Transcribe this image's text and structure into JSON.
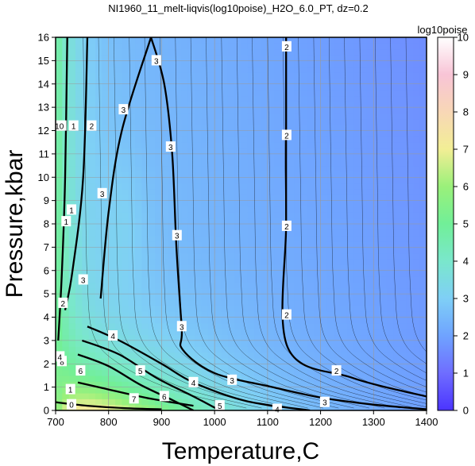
{
  "chart_data": {
    "type": "heatmap",
    "title": "NI1960_11_melt-liqvis(log10poise)_H2O_6.0_PT, dz=0.2",
    "xlabel": "Temperature,C",
    "ylabel": "Pressure,kbar",
    "colorbar_label": "log10poise",
    "xlim": [
      700,
      1400
    ],
    "ylim": [
      0,
      16
    ],
    "zlim": [
      0,
      10
    ],
    "xticks": [
      "700",
      "800",
      "900",
      "1000",
      "1100",
      "1200",
      "1300",
      "1400"
    ],
    "yticks": [
      "0",
      "1",
      "2",
      "3",
      "4",
      "5",
      "6",
      "7",
      "8",
      "9",
      "10",
      "11",
      "12",
      "13",
      "14",
      "15",
      "16"
    ],
    "cticks": [
      "0",
      "1",
      "2",
      "3",
      "4",
      "5",
      "6",
      "7",
      "8",
      "9",
      "10"
    ],
    "grid": true,
    "contour_interval": 0.2,
    "labeled_contours": [
      {
        "level": "1",
        "points": [
          [
            705,
            3.0
          ],
          [
            712,
            6
          ],
          [
            718,
            10
          ],
          [
            722,
            16
          ]
        ]
      },
      {
        "level": "2",
        "points": [
          [
            718,
            4.3
          ],
          [
            732,
            6
          ],
          [
            752,
            10
          ],
          [
            760,
            16
          ]
        ]
      },
      {
        "level": "3",
        "points": [
          [
            785,
            4.8
          ],
          [
            800,
            8.5
          ],
          [
            825,
            12
          ],
          [
            880,
            16
          ]
        ]
      },
      {
        "level": "3",
        "points": [
          [
            880,
            16
          ],
          [
            905,
            14
          ],
          [
            920,
            11
          ],
          [
            928,
            7
          ],
          [
            938,
            3.5
          ],
          [
            940,
            2.6
          ],
          [
            1000,
            1.6
          ],
          [
            1100,
            1.05
          ]
        ]
      },
      {
        "level": "2",
        "points": [
          [
            1135,
            16
          ],
          [
            1135,
            12
          ],
          [
            1135,
            8
          ],
          [
            1138,
            2.7
          ],
          [
            1260,
            1.4
          ],
          [
            1400,
            0.6
          ]
        ]
      },
      {
        "level": "3",
        "points": [
          [
            1100,
            1.05
          ],
          [
            1200,
            0.55
          ],
          [
            1300,
            0.25
          ],
          [
            1400,
            0.05
          ]
        ]
      },
      {
        "level": "4",
        "points": [
          [
            760,
            3.6
          ],
          [
            820,
            3.0
          ],
          [
            900,
            2.0
          ],
          [
            960,
            1.2
          ],
          [
            1060,
            0.4
          ],
          [
            1180,
            0.0
          ]
        ]
      },
      {
        "level": "5",
        "points": [
          [
            750,
            3.0
          ],
          [
            820,
            2.4
          ],
          [
            890,
            1.4
          ],
          [
            960,
            0.6
          ],
          [
            1010,
            0.0
          ]
        ]
      },
      {
        "level": "6",
        "points": [
          [
            742,
            2.4
          ],
          [
            800,
            1.9
          ],
          [
            860,
            1.1
          ],
          [
            920,
            0.45
          ],
          [
            960,
            0.0
          ]
        ]
      },
      {
        "level": "7",
        "points": [
          [
            742,
            1.2
          ],
          [
            800,
            0.9
          ],
          [
            880,
            0.5
          ],
          [
            960,
            0.2
          ]
        ]
      },
      {
        "level": "0",
        "points": [
          [
            700,
            0.35
          ],
          [
            760,
            0.2
          ],
          [
            830,
            0.1
          ],
          [
            900,
            0.05
          ]
        ]
      }
    ],
    "contour_labels": [
      {
        "text": "10",
        "x": 707,
        "y": 12.2
      },
      {
        "text": "1",
        "x": 734,
        "y": 12.2
      },
      {
        "text": "2",
        "x": 768,
        "y": 12.2
      },
      {
        "text": "3",
        "x": 890,
        "y": 15.0
      },
      {
        "text": "3",
        "x": 828,
        "y": 12.9
      },
      {
        "text": "3",
        "x": 917,
        "y": 11.3
      },
      {
        "text": "3",
        "x": 788,
        "y": 9.3
      },
      {
        "text": "1",
        "x": 720,
        "y": 8.1
      },
      {
        "text": "1",
        "x": 730,
        "y": 8.6
      },
      {
        "text": "3",
        "x": 929,
        "y": 7.5
      },
      {
        "text": "3",
        "x": 752,
        "y": 5.6
      },
      {
        "text": "2",
        "x": 714,
        "y": 4.6
      },
      {
        "text": "3",
        "x": 938,
        "y": 3.6
      },
      {
        "text": "2",
        "x": 1136,
        "y": 15.6
      },
      {
        "text": "2",
        "x": 1136,
        "y": 11.8
      },
      {
        "text": "2",
        "x": 1136,
        "y": 7.9
      },
      {
        "text": "2",
        "x": 1136,
        "y": 4.1
      },
      {
        "text": "4",
        "x": 808,
        "y": 3.2
      },
      {
        "text": "5",
        "x": 860,
        "y": 1.7
      },
      {
        "text": "6",
        "x": 747,
        "y": 1.7
      },
      {
        "text": "2",
        "x": 1230,
        "y": 1.7
      },
      {
        "text": "3",
        "x": 1033,
        "y": 1.3
      },
      {
        "text": "4",
        "x": 960,
        "y": 1.2
      },
      {
        "text": "6",
        "x": 905,
        "y": 0.6
      },
      {
        "text": "1",
        "x": 728,
        "y": 0.9
      },
      {
        "text": "7",
        "x": 848,
        "y": 0.5
      },
      {
        "text": "5",
        "x": 1010,
        "y": 0.2
      },
      {
        "text": "3",
        "x": 1208,
        "y": 0.35
      },
      {
        "text": "4",
        "x": 1118,
        "y": 0.05
      },
      {
        "text": "0",
        "x": 730,
        "y": 0.25
      },
      {
        "text": "8",
        "x": 712,
        "y": 2.1
      },
      {
        "text": "4",
        "x": 708,
        "y": 2.3
      }
    ]
  }
}
